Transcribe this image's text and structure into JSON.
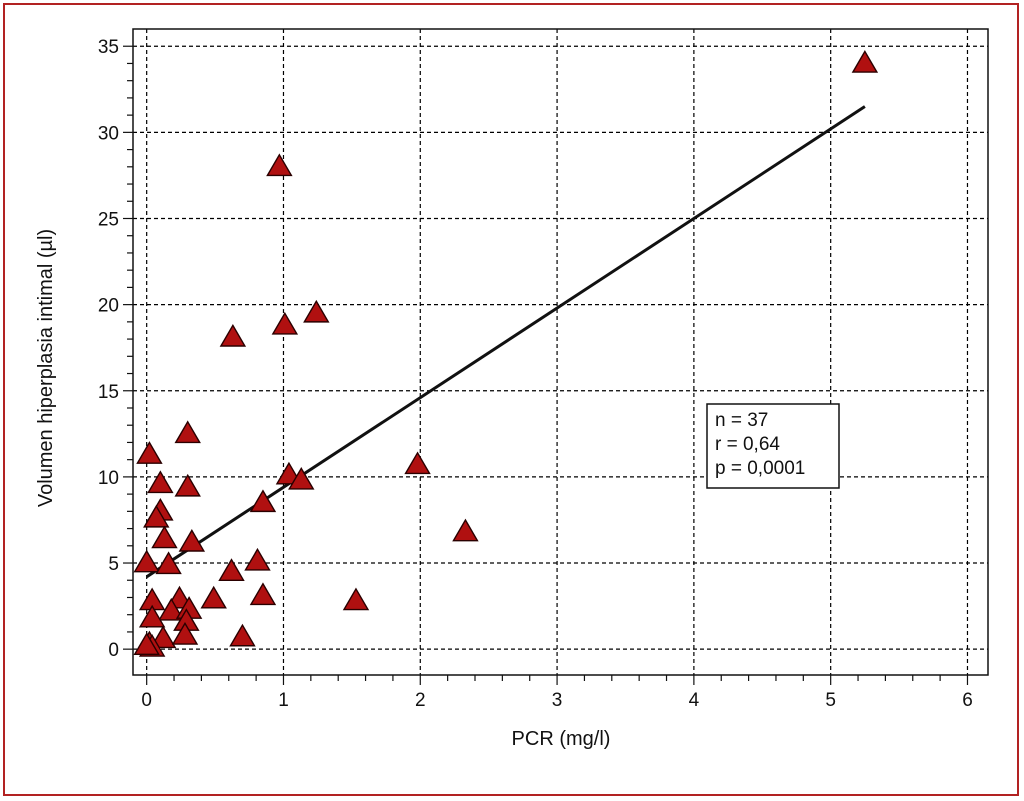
{
  "colors": {
    "frame": "#b22222",
    "marker_fill": "#b01010",
    "marker_stroke": "#2a0000",
    "grid": "#000000",
    "fit_line": "#111111"
  },
  "chart_data": {
    "type": "scatter",
    "title": "",
    "xlabel": "PCR (mg/l)",
    "ylabel": "Volumen hiperplasia intimal (µl)",
    "xlim": [
      -0.1,
      6.15
    ],
    "ylim": [
      -1.5,
      36.0
    ],
    "xticks": [
      0,
      1,
      2,
      3,
      4,
      5,
      6
    ],
    "yticks": [
      0,
      5,
      10,
      15,
      20,
      25,
      30,
      35
    ],
    "grid": true,
    "marker": "triangle",
    "points": [
      {
        "x": 5.25,
        "y": 34.0
      },
      {
        "x": 0.97,
        "y": 28.0
      },
      {
        "x": 1.24,
        "y": 19.5
      },
      {
        "x": 1.01,
        "y": 18.8
      },
      {
        "x": 0.63,
        "y": 18.1
      },
      {
        "x": 0.3,
        "y": 12.5
      },
      {
        "x": 0.02,
        "y": 11.3
      },
      {
        "x": 1.98,
        "y": 10.7
      },
      {
        "x": 1.04,
        "y": 10.1
      },
      {
        "x": 1.13,
        "y": 9.8
      },
      {
        "x": 0.1,
        "y": 9.6
      },
      {
        "x": 0.3,
        "y": 9.4
      },
      {
        "x": 0.85,
        "y": 8.5
      },
      {
        "x": 0.1,
        "y": 8.0
      },
      {
        "x": 0.07,
        "y": 7.6
      },
      {
        "x": 2.33,
        "y": 6.8
      },
      {
        "x": 0.13,
        "y": 6.4
      },
      {
        "x": 0.33,
        "y": 6.2
      },
      {
        "x": 0.0,
        "y": 5.0
      },
      {
        "x": 0.16,
        "y": 4.9
      },
      {
        "x": 0.81,
        "y": 5.1
      },
      {
        "x": 0.62,
        "y": 4.5
      },
      {
        "x": 0.85,
        "y": 3.1
      },
      {
        "x": 0.04,
        "y": 2.8
      },
      {
        "x": 0.24,
        "y": 2.9
      },
      {
        "x": 0.49,
        "y": 2.9
      },
      {
        "x": 1.53,
        "y": 2.8
      },
      {
        "x": 0.18,
        "y": 2.2
      },
      {
        "x": 0.31,
        "y": 2.3
      },
      {
        "x": 0.04,
        "y": 1.8
      },
      {
        "x": 0.29,
        "y": 1.6
      },
      {
        "x": 0.12,
        "y": 0.6
      },
      {
        "x": 0.28,
        "y": 0.8
      },
      {
        "x": 0.7,
        "y": 0.7
      },
      {
        "x": 0.02,
        "y": 0.3
      },
      {
        "x": 0.04,
        "y": 0.1
      },
      {
        "x": 0.0,
        "y": 0.2
      }
    ],
    "fit_line": {
      "x": [
        0.0,
        5.25
      ],
      "y": [
        4.2,
        31.5
      ]
    },
    "annotation": {
      "lines": [
        "n = 37",
        "r = 0,64",
        "p = 0,0001"
      ],
      "placement": "center-right"
    }
  }
}
